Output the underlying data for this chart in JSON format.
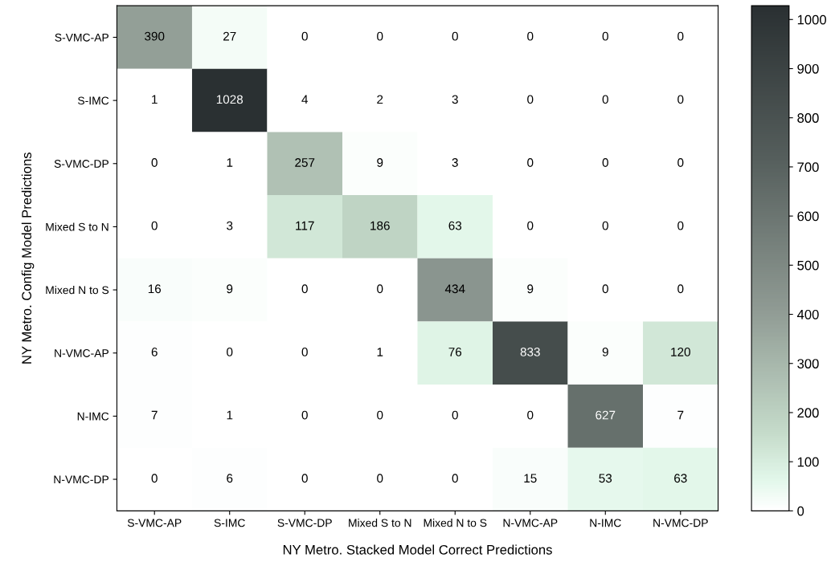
{
  "chart_data": {
    "type": "heatmap",
    "xlabel": "NY Metro. Stacked Model Correct Predictions",
    "ylabel": "NY Metro. Config Model Predictions",
    "categories": [
      "S-VMC-AP",
      "S-IMC",
      "S-VMC-DP",
      "Mixed S to N",
      "Mixed N to S",
      "N-VMC-AP",
      "N-IMC",
      "N-VMC-DP"
    ],
    "y_categories": [
      "S-VMC-AP",
      "S-IMC",
      "S-VMC-DP",
      "Mixed S to N",
      "Mixed N to S",
      "N-VMC-AP",
      "N-IMC",
      "N-VMC-DP"
    ],
    "cells": [
      [
        390,
        27,
        0,
        0,
        0,
        0,
        0,
        0
      ],
      [
        1,
        1028,
        4,
        2,
        3,
        0,
        0,
        0
      ],
      [
        0,
        1,
        257,
        9,
        3,
        0,
        0,
        0
      ],
      [
        0,
        3,
        117,
        186,
        63,
        0,
        0,
        0
      ],
      [
        16,
        9,
        0,
        0,
        434,
        9,
        0,
        0
      ],
      [
        6,
        0,
        0,
        1,
        76,
        833,
        9,
        120
      ],
      [
        7,
        1,
        0,
        0,
        0,
        0,
        627,
        7
      ],
      [
        0,
        6,
        0,
        0,
        0,
        15,
        53,
        63
      ]
    ],
    "data_labels": true,
    "clim": [
      0,
      1028
    ],
    "cticks": [
      0,
      100,
      200,
      300,
      400,
      500,
      600,
      700,
      800,
      900,
      1000
    ]
  }
}
